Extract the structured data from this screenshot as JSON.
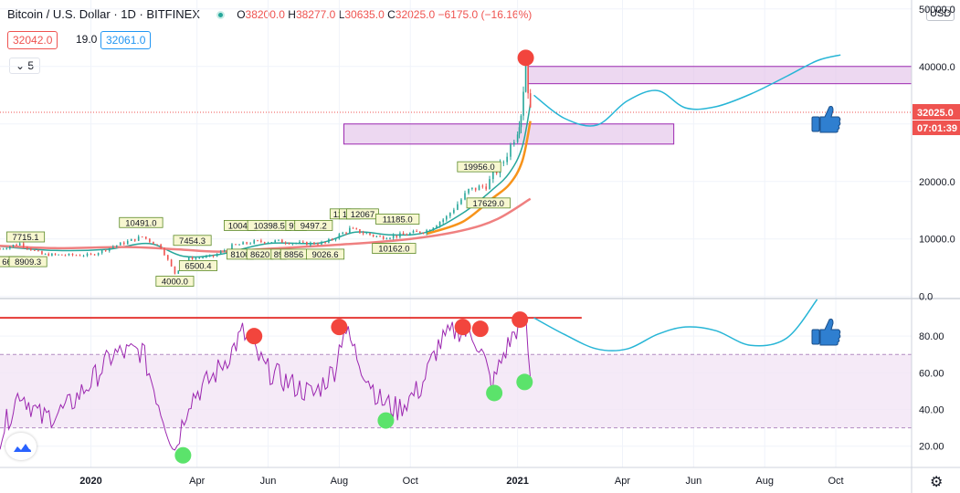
{
  "header": {
    "symbol_title": "Bitcoin / U.S. Dollar · 1D · BITFINEX",
    "open_label": "O",
    "open": "38200.0",
    "high_label": "H",
    "high": "38277.0",
    "low_label": "L",
    "low": "30635.0",
    "close_label": "C",
    "close": "32025.0",
    "change": "−6175.0 (−16.16%)",
    "bid": "32042.0",
    "spread": "19.0",
    "ask": "32061.0",
    "indicators_collapsed": "5"
  },
  "currency_button": "USD",
  "colors": {
    "candle_green": "#26a69a",
    "candle_red": "#ef5350",
    "ma_fast": "#26a69a",
    "ma_mid": "#f7931a",
    "ma_slow": "#ef8080",
    "zone_fill": "#e1bee7",
    "zone_stroke": "#9c27b0",
    "rsi_line": "#9c27b0",
    "rsi_band": "#f3e5f5",
    "projection": "#26b5d6",
    "resistance": "#e53935",
    "marker_red": "#f2453d",
    "marker_green": "#5be36b",
    "thumb": "#2f7fd0"
  },
  "chart_data": [
    {
      "type": "line",
      "title": "Bitcoin / U.S. Dollar · 1D · BITFINEX",
      "x_ticks": [
        "2020",
        "Apr",
        "Jun",
        "Aug",
        "Oct",
        "2021",
        "Apr",
        "Jun",
        "Aug",
        "Oct"
      ],
      "x_tick_dates": [
        "2020-01-01",
        "2020-04-01",
        "2020-06-01",
        "2020-08-01",
        "2020-10-01",
        "2021-01-01",
        "2021-04-01",
        "2021-06-01",
        "2021-08-01",
        "2021-10-01"
      ],
      "x_range": [
        "2019-10-15",
        "2021-12-05"
      ],
      "y_ticks": [
        "0.0",
        "10000.0",
        "20000.0",
        "30000.0",
        "40000.0",
        "50000.0"
      ],
      "ylim": [
        -200,
        50600
      ],
      "current_price": "32025.0",
      "countdown": "07:01:39",
      "series": [
        {
          "values_kind": "close",
          "x": [
            "2019-10-15",
            "2019-11-01",
            "2019-11-20",
            "2019-12-10",
            "2020-01-01",
            "2020-01-20",
            "2020-02-14",
            "2020-03-01",
            "2020-03-13",
            "2020-03-25",
            "2020-04-15",
            "2020-05-01",
            "2020-05-20",
            "2020-06-10",
            "2020-07-01",
            "2020-07-20",
            "2020-08-10",
            "2020-09-05",
            "2020-09-25",
            "2020-10-15",
            "2020-11-01",
            "2020-11-20",
            "2020-12-05",
            "2020-12-20",
            "2021-01-01",
            "2021-01-04",
            "2021-01-08",
            "2021-01-12"
          ],
          "values": [
            8300,
            9200,
            7300,
            7200,
            7200,
            8700,
            10400,
            8600,
            4000,
            6600,
            7000,
            8800,
            9500,
            9600,
            9200,
            9300,
            11700,
            10300,
            10700,
            11500,
            13800,
            18400,
            19300,
            23500,
            29000,
            32000,
            40500,
            32025
          ]
        },
        {
          "values_kind": "ma_fast",
          "x": [
            "2019-10-15",
            "2019-12-01",
            "2020-01-15",
            "2020-02-20",
            "2020-03-20",
            "2020-04-20",
            "2020-06-01",
            "2020-07-15",
            "2020-08-15",
            "2020-09-15",
            "2020-10-15",
            "2020-11-15",
            "2020-12-10",
            "2020-12-25",
            "2021-01-05",
            "2021-01-12"
          ],
          "values": [
            8700,
            8000,
            8200,
            9200,
            7000,
            7300,
            9200,
            9300,
            11200,
            10700,
            11200,
            14500,
            18500,
            21500,
            26000,
            33500
          ]
        },
        {
          "values_kind": "ma_mid",
          "x": [
            "2020-10-15",
            "2020-11-15",
            "2020-12-10",
            "2020-12-25",
            "2021-01-05",
            "2021-01-12"
          ],
          "values": [
            10900,
            13000,
            17000,
            19500,
            23500,
            30500
          ]
        },
        {
          "values_kind": "ma_slow",
          "x": [
            "2019-10-15",
            "2019-12-01",
            "2020-02-01",
            "2020-03-15",
            "2020-04-20",
            "2020-06-01",
            "2020-08-01",
            "2020-10-01",
            "2020-11-15",
            "2020-12-15",
            "2021-01-12"
          ],
          "values": [
            8800,
            8400,
            8600,
            8200,
            7800,
            8300,
            9000,
            10000,
            11500,
            13500,
            17000
          ]
        }
      ],
      "zones": [
        {
          "x0": "2021-01-10",
          "x1": "2021-12-05",
          "y0": 37000,
          "y1": 40000
        },
        {
          "x0": "2020-08-05",
          "x1": "2021-05-15",
          "y0": 26500,
          "y1": 30000
        }
      ],
      "projection": {
        "x": [
          "2021-01-15",
          "2021-02-10",
          "2021-03-10",
          "2021-04-05",
          "2021-05-01",
          "2021-05-25",
          "2021-06-20",
          "2021-07-20",
          "2021-08-20",
          "2021-09-15",
          "2021-10-05"
        ],
        "values": [
          35000,
          31000,
          29800,
          34000,
          35800,
          32800,
          33000,
          35200,
          38300,
          41000,
          42000
        ]
      },
      "markers": [
        {
          "color": "red",
          "x": "2021-01-08",
          "y": 41500
        }
      ],
      "price_labels": [
        {
          "text": "18.1",
          "x": "2019-10-19",
          "y": 5500
        },
        {
          "text": "6647",
          "x": "2019-10-25",
          "y": 5500
        },
        {
          "text": "8909.3",
          "x": "2019-11-08",
          "y": 5500
        },
        {
          "text": "7715.1",
          "x": "2019-11-06",
          "y": 9800
        },
        {
          "text": "10491.0",
          "x": "2020-02-13",
          "y": 12300
        },
        {
          "text": "7454.3",
          "x": "2020-03-28",
          "y": 9200
        },
        {
          "text": "4000.0",
          "x": "2020-03-13",
          "y": 2100
        },
        {
          "text": "6500.4",
          "x": "2020-04-02",
          "y": 4800
        },
        {
          "text": "10045",
          "x": "2020-05-08",
          "y": 11800
        },
        {
          "text": "8100",
          "x": "2020-05-08",
          "y": 6800
        },
        {
          "text": "8620",
          "x": "2020-05-25",
          "y": 6800
        },
        {
          "text": "10398.5",
          "x": "2020-06-02",
          "y": 11800
        },
        {
          "text": "89",
          "x": "2020-06-10",
          "y": 6800
        },
        {
          "text": "979",
          "x": "2020-06-25",
          "y": 11800
        },
        {
          "text": "8856",
          "x": "2020-06-23",
          "y": 6800
        },
        {
          "text": "9497.2",
          "x": "2020-07-10",
          "y": 11800
        },
        {
          "text": "9026.6",
          "x": "2020-07-20",
          "y": 6800
        },
        {
          "text": "120",
          "x": "2020-08-02",
          "y": 13800
        },
        {
          "text": "124",
          "x": "2020-08-10",
          "y": 13800
        },
        {
          "text": "12067",
          "x": "2020-08-21",
          "y": 13800
        },
        {
          "text": "11185.0",
          "x": "2020-09-20",
          "y": 12900
        },
        {
          "text": "988",
          "x": "2020-09-10",
          "y": 7800
        },
        {
          "text": "10162.0",
          "x": "2020-09-17",
          "y": 7800
        },
        {
          "text": "19956.0",
          "x": "2020-11-29",
          "y": 22000
        },
        {
          "text": "17629.0",
          "x": "2020-12-07",
          "y": 15700
        }
      ]
    },
    {
      "type": "line",
      "title": "",
      "y_ticks": [
        "20.00",
        "40.00",
        "60.00",
        "80.00"
      ],
      "ylim": [
        9.4,
        100
      ],
      "band": [
        30,
        70
      ],
      "resistance_level": 90,
      "series": [
        {
          "values_kind": "rsi",
          "x": [
            "2019-10-15",
            "2019-11-01",
            "2019-11-20",
            "2019-12-10",
            "2020-01-01",
            "2020-01-20",
            "2020-02-14",
            "2020-03-01",
            "2020-03-13",
            "2020-03-25",
            "2020-04-15",
            "2020-05-01",
            "2020-05-10",
            "2020-05-30",
            "2020-06-20",
            "2020-07-10",
            "2020-07-28",
            "2020-08-05",
            "2020-08-20",
            "2020-09-05",
            "2020-09-20",
            "2020-10-10",
            "2020-10-25",
            "2020-11-10",
            "2020-11-25",
            "2020-12-03",
            "2020-12-10",
            "2020-12-20",
            "2020-12-31",
            "2021-01-08",
            "2021-01-12"
          ],
          "values": [
            25,
            50,
            35,
            40,
            55,
            70,
            72,
            40,
            18,
            45,
            58,
            72,
            82,
            62,
            54,
            48,
            62,
            85,
            64,
            45,
            40,
            52,
            75,
            84,
            80,
            68,
            52,
            70,
            84,
            90,
            55
          ]
        }
      ],
      "projection": {
        "x": [
          "2021-01-15",
          "2021-02-10",
          "2021-03-10",
          "2021-04-05",
          "2021-05-01",
          "2021-05-25",
          "2021-06-20",
          "2021-07-20",
          "2021-08-20",
          "2021-09-15"
        ],
        "values": [
          90,
          81,
          73,
          73,
          81,
          85,
          83,
          75,
          79,
          100
        ]
      },
      "markers": [
        {
          "color": "red",
          "x": "2020-05-20",
          "y": 80
        },
        {
          "color": "red",
          "x": "2020-08-01",
          "y": 85
        },
        {
          "color": "red",
          "x": "2020-11-15",
          "y": 85
        },
        {
          "color": "red",
          "x": "2020-11-30",
          "y": 84
        },
        {
          "color": "red",
          "x": "2021-01-03",
          "y": 89
        },
        {
          "color": "green",
          "x": "2020-03-20",
          "y": 15
        },
        {
          "color": "green",
          "x": "2020-09-10",
          "y": 34
        },
        {
          "color": "green",
          "x": "2020-12-12",
          "y": 49
        },
        {
          "color": "green",
          "x": "2021-01-07",
          "y": 55
        }
      ]
    }
  ]
}
